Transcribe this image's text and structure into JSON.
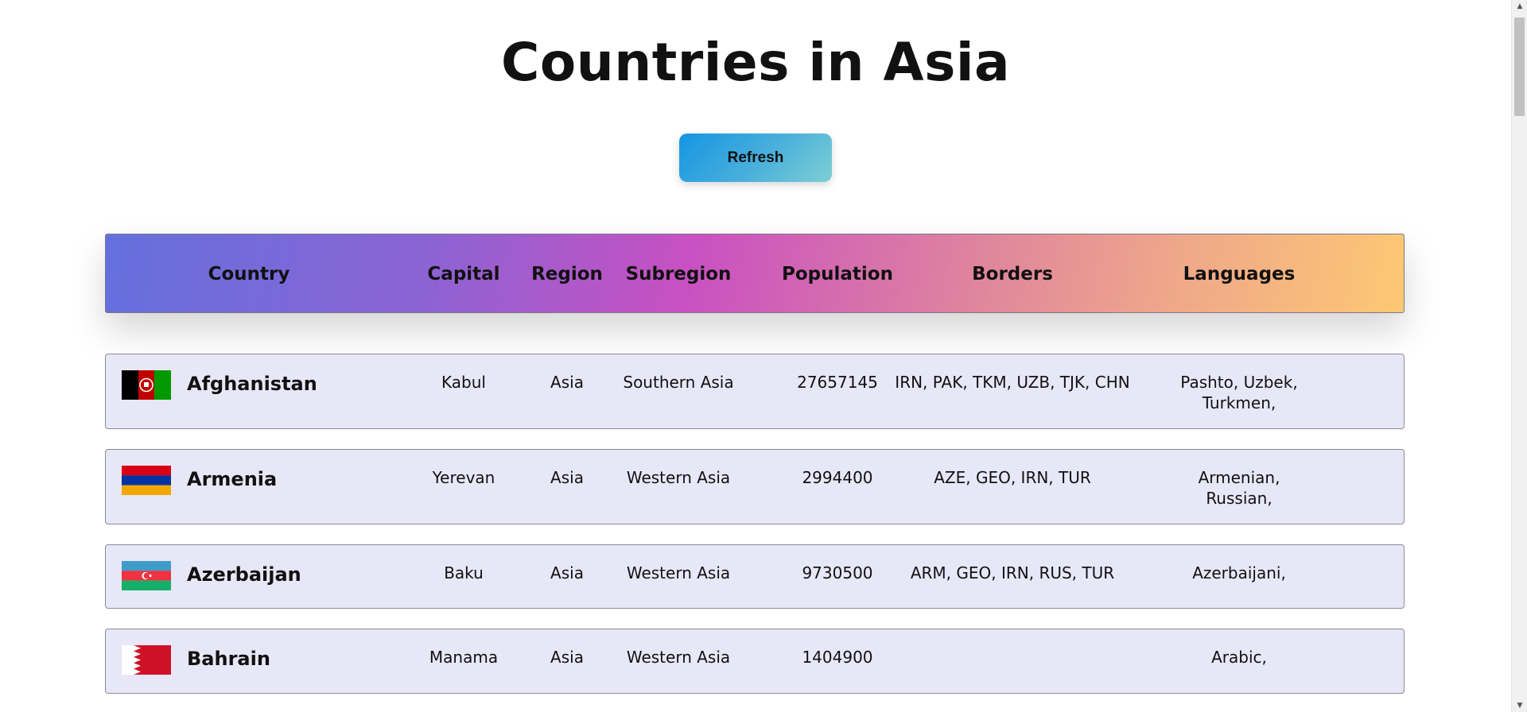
{
  "page": {
    "title": "Countries in Asia",
    "refresh_label": "Refresh"
  },
  "table": {
    "headers": [
      "Country",
      "Capital",
      "Region",
      "Subregion",
      "Population",
      "Borders",
      "Languages"
    ],
    "rows": [
      {
        "flag": "afghanistan-flag",
        "name": "Afghanistan",
        "capital": "Kabul",
        "region": "Asia",
        "subregion": "Southern Asia",
        "population": "27657145",
        "borders": "IRN, PAK, TKM, UZB, TJK, CHN",
        "languages_line1": "Pashto, Uzbek,",
        "languages_line2": "Turkmen,"
      },
      {
        "flag": "armenia-flag",
        "name": "Armenia",
        "capital": "Yerevan",
        "region": "Asia",
        "subregion": "Western Asia",
        "population": "2994400",
        "borders": "AZE, GEO, IRN, TUR",
        "languages_line1": "Armenian,",
        "languages_line2": "Russian,"
      },
      {
        "flag": "azerbaijan-flag",
        "name": "Azerbaijan",
        "capital": "Baku",
        "region": "Asia",
        "subregion": "Western Asia",
        "population": "9730500",
        "borders": "ARM, GEO, IRN, RUS, TUR",
        "languages_line1": "Azerbaijani,",
        "languages_line2": ""
      },
      {
        "flag": "bahrain-flag",
        "name": "Bahrain",
        "capital": "Manama",
        "region": "Asia",
        "subregion": "Western Asia",
        "population": "1404900",
        "borders": "",
        "languages_line1": "Arabic,",
        "languages_line2": ""
      }
    ]
  },
  "colors": {
    "row_background": "#e7e7f8",
    "button_gradient_start": "#1595e3",
    "button_gradient_end": "#7ecfd2",
    "header_gradient_start": "#6470de",
    "header_gradient_mid": "#c950c2",
    "header_gradient_end": "#fdc873"
  }
}
